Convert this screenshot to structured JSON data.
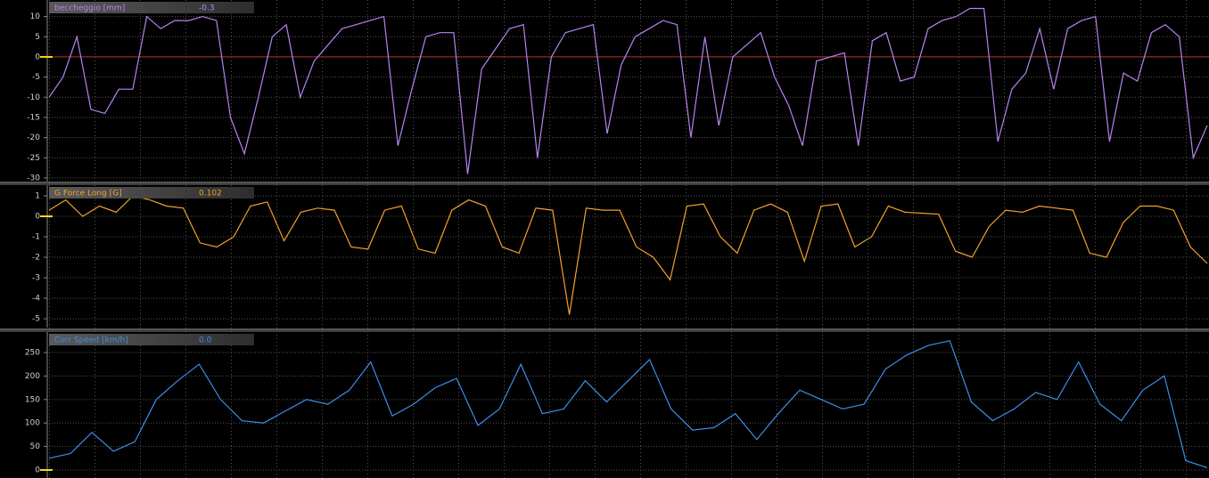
{
  "chart_data": [
    {
      "type": "line",
      "title": "beccheggio [mm]",
      "readout": "-0.3",
      "color": "#b784f0",
      "ylim": [
        -30.9,
        14.1
      ],
      "yticks": [
        10,
        5,
        0,
        -5,
        -10,
        -15,
        -20,
        -25,
        -30
      ],
      "grid": true,
      "reference_line": {
        "value": 0,
        "color": "#a8322a"
      },
      "values": [
        -10,
        -5,
        5,
        -13,
        -14,
        -8,
        -8,
        10,
        7,
        9,
        9,
        10,
        9,
        -15,
        -24,
        -10,
        5,
        8,
        -10,
        -1,
        3,
        7,
        8,
        9,
        10,
        -22,
        -8,
        5,
        6,
        6,
        -29,
        -3,
        2,
        7,
        8,
        -25,
        0,
        6,
        7,
        8,
        -19,
        -2,
        5,
        7,
        9,
        8,
        -20,
        5,
        -17,
        0,
        3,
        6,
        -5,
        -12,
        -22,
        -1,
        0,
        1,
        -22,
        4,
        6,
        -6,
        -5,
        7,
        9,
        10,
        12,
        12,
        -21,
        -8,
        -4,
        7,
        -8,
        7,
        9,
        10,
        -21,
        -4,
        -6,
        6,
        8,
        5,
        -25,
        -17
      ]
    },
    {
      "type": "line",
      "title": "G Force Long [G]",
      "readout": "0.102",
      "color": "#f5a02a",
      "ylim": [
        -5.43,
        1.52
      ],
      "yticks": [
        1,
        0,
        -1,
        -2,
        -3,
        -4,
        -5
      ],
      "grid": true,
      "values": [
        0.3,
        0.8,
        0,
        0.5,
        0.2,
        1,
        0.8,
        0.5,
        0.4,
        -1.3,
        -1.5,
        -1,
        0.5,
        0.7,
        -1.2,
        0.2,
        0.4,
        0.3,
        -1.5,
        -1.6,
        0.3,
        0.5,
        -1.6,
        -1.8,
        0.3,
        0.8,
        0.5,
        -1.5,
        -1.8,
        0.4,
        0.3,
        -4.8,
        0.4,
        0.3,
        0.3,
        -1.5,
        -2,
        -3.1,
        0.5,
        0.6,
        -1,
        -1.8,
        0.3,
        0.6,
        0.2,
        -2.2,
        0.5,
        0.6,
        -1.5,
        -1,
        0.5,
        0.2,
        0.15,
        0.1,
        -1.7,
        -2,
        -0.5,
        0.3,
        0.2,
        0.5,
        0.4,
        0.3,
        -1.8,
        -2,
        -0.3,
        0.5,
        0.5,
        0.3,
        -1.5,
        -2.3
      ]
    },
    {
      "type": "line",
      "title": "Corr Speed [km/h]",
      "readout": "0.0",
      "color": "#3d8ee8",
      "ylim": [
        -17,
        293.6
      ],
      "yticks": [
        0,
        50,
        100,
        150,
        200,
        250
      ],
      "grid": true,
      "values": [
        25,
        35,
        80,
        40,
        60,
        150,
        190,
        225,
        150,
        105,
        100,
        125,
        150,
        140,
        170,
        230,
        115,
        140,
        175,
        195,
        95,
        130,
        225,
        120,
        130,
        190,
        145,
        190,
        235,
        130,
        85,
        90,
        120,
        65,
        120,
        170,
        150,
        130,
        140,
        215,
        245,
        265,
        275,
        145,
        105,
        130,
        165,
        150,
        230,
        140,
        105,
        170,
        200,
        20,
        5
      ]
    }
  ]
}
